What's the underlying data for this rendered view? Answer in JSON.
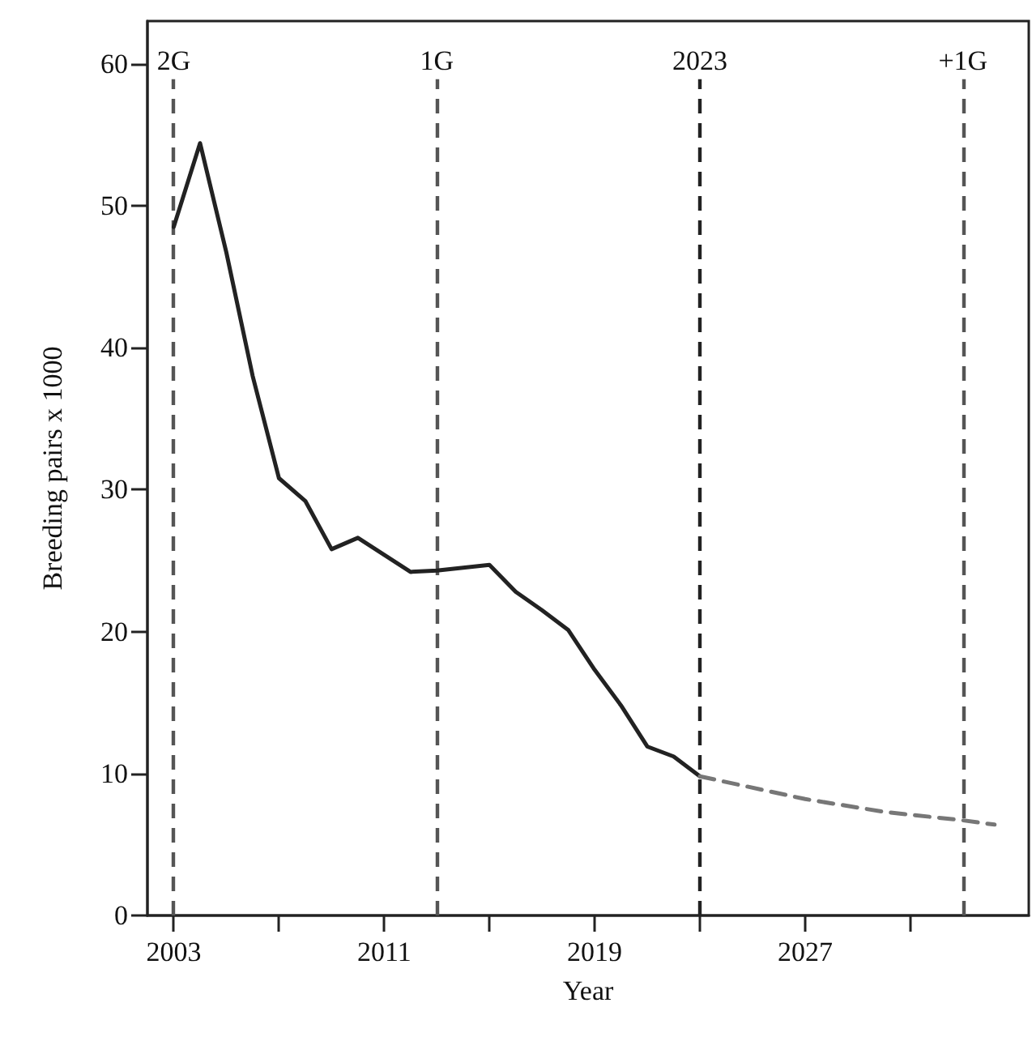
{
  "chart_data": {
    "type": "line",
    "xlabel": "Year",
    "ylabel": "Breeding pairs x 1000",
    "series": [
      {
        "color": "#222222",
        "line_style": "solid",
        "x": [
          2003,
          2004,
          2005,
          2006,
          2007,
          2008,
          2009,
          2010,
          2011,
          2012,
          2013,
          2014,
          2015,
          2016,
          2017,
          2018,
          2019,
          2020,
          2021,
          2022,
          2023
        ],
        "values": [
          48.5,
          54.4,
          46.7,
          38,
          30.8,
          29.2,
          25.8,
          26.6,
          25.4,
          24.2,
          24.3,
          24.5,
          24.7,
          22.8,
          21.5,
          20.1,
          17.3,
          14.8,
          11.9,
          11.2,
          9.8
        ]
      },
      {
        "color": "#777777",
        "line_style": "dashed",
        "x": [
          2023,
          2027,
          2030,
          2033,
          2034.2
        ],
        "values": [
          9.8,
          8.2,
          7.3,
          6.7,
          6.4
        ]
      }
    ],
    "xlim": [
      2002,
      2035.5
    ],
    "xticks": [
      2003,
      {
        "value": 2007,
        "label": null
      },
      2011,
      {
        "value": 2015,
        "label": null
      },
      2019,
      {
        "value": 2023,
        "label": null
      },
      2027,
      {
        "value": 2031,
        "label": null
      }
    ],
    "ylim": [
      0,
      63
    ],
    "yticks": [
      0,
      10,
      20,
      30,
      40,
      50,
      60
    ],
    "ref_lines": [
      {
        "axis": "x",
        "value": 2003,
        "label": "2G",
        "color": "#555555",
        "line_style": "dashed"
      },
      {
        "axis": "x",
        "value": 2013,
        "label": "1G",
        "color": "#555555",
        "line_style": "dashed"
      },
      {
        "axis": "x",
        "value": 2023,
        "label": "2023",
        "color": "#222222",
        "line_style": "dashed"
      },
      {
        "axis": "x",
        "value": 2033,
        "label": "+1G",
        "color": "#555555",
        "line_style": "dashed"
      }
    ],
    "marker": "none",
    "grid": false
  }
}
